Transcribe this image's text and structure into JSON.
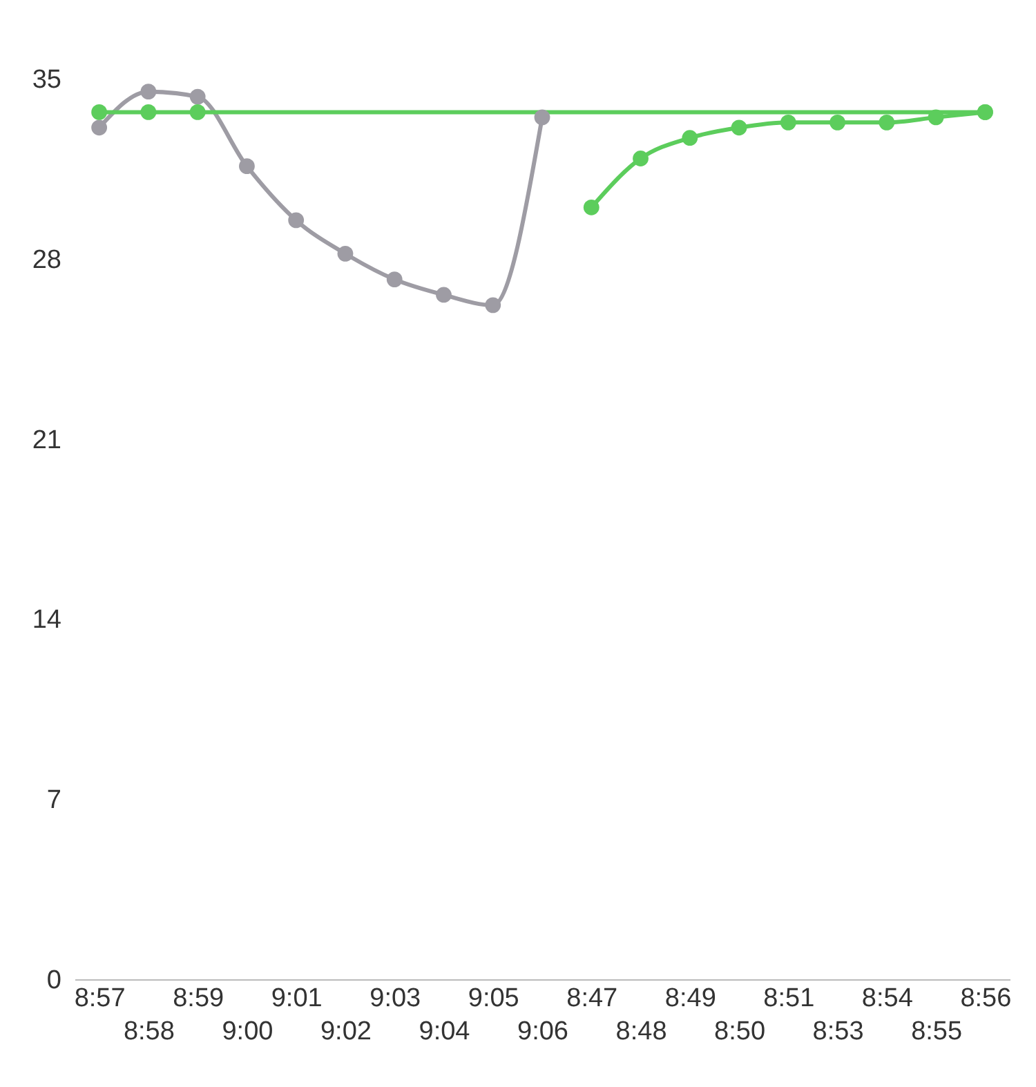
{
  "chart_data": {
    "type": "line",
    "categories": [
      "8:57",
      "8:58",
      "8:59",
      "9:00",
      "9:01",
      "9:02",
      "9:03",
      "9:04",
      "9:05",
      "9:06",
      "8:47",
      "8:48",
      "8:49",
      "8:50",
      "8:51",
      "8:53",
      "8:54",
      "8:55",
      "8:56"
    ],
    "series": [
      {
        "color": "#9e9ca4",
        "values": [
          33.1,
          34.5,
          34.3,
          31.6,
          29.5,
          28.2,
          27.2,
          26.6,
          26.2,
          33.5,
          null,
          null,
          null,
          null,
          null,
          null,
          null,
          null,
          null
        ]
      },
      {
        "color": "#5ccd5c",
        "values": [
          33.7,
          33.7,
          33.7,
          null,
          null,
          null,
          null,
          null,
          null,
          null,
          null,
          null,
          null,
          null,
          null,
          null,
          null,
          null,
          33.7
        ]
      },
      {
        "color": "#5ccd5c",
        "values": [
          null,
          null,
          null,
          null,
          null,
          null,
          null,
          null,
          null,
          null,
          30.0,
          31.9,
          32.7,
          33.1,
          33.3,
          33.3,
          33.3,
          33.5,
          33.7
        ]
      }
    ],
    "ylim": [
      0,
      35
    ],
    "yticks": [
      0,
      7,
      14,
      21,
      28,
      35
    ],
    "grid": false,
    "legend": false,
    "marker": "circle",
    "line_style": "solid"
  }
}
